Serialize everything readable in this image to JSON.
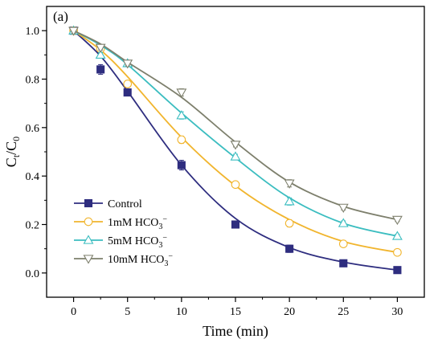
{
  "chart_data": {
    "type": "line",
    "panel_label": "(a)",
    "xlabel": "Time (min)",
    "ylabel": {
      "main": "C",
      "sub1": "t",
      "slash": "/C",
      "sub2": "0"
    },
    "xlim": [
      -2.5,
      32.5
    ],
    "ylim": [
      -0.1,
      1.1
    ],
    "xticks": [
      0,
      5,
      10,
      15,
      20,
      25,
      30
    ],
    "yticks": [
      0.0,
      0.2,
      0.4,
      0.6,
      0.8,
      1.0
    ],
    "x": [
      0,
      2.5,
      5,
      10,
      15,
      20,
      25,
      30
    ],
    "legend_position": "lower-left",
    "series": [
      {
        "name": "Control",
        "color": "#2e2d7f",
        "marker": "square-filled",
        "values": [
          1.0,
          0.84,
          0.745,
          0.445,
          0.2,
          0.1,
          0.04,
          0.012
        ],
        "errors": [
          0.01,
          0.02,
          0.01,
          0.02,
          0.01,
          0.015,
          0.005,
          0.005
        ],
        "fit": [
          1.0,
          0.895,
          0.75,
          0.445,
          0.225,
          0.105,
          0.045,
          0.012
        ]
      },
      {
        "name": "1mM HCO",
        "name_sub": "3",
        "name_sup": "−",
        "color": "#f1b52e",
        "marker": "circle-open",
        "values": [
          1.0,
          0.925,
          0.78,
          0.55,
          0.365,
          0.205,
          0.12,
          0.085
        ],
        "errors": [
          0.01,
          0.01,
          0.01,
          0.015,
          0.01,
          0.015,
          0.01,
          0.01
        ],
        "fit": [
          1.0,
          0.92,
          0.81,
          0.56,
          0.36,
          0.22,
          0.13,
          0.085
        ]
      },
      {
        "name": "5mM HCO",
        "name_sub": "3",
        "name_sup": "−",
        "color": "#3bbdc0",
        "marker": "triangle-up-open",
        "values": [
          1.0,
          0.9,
          0.865,
          0.65,
          0.48,
          0.295,
          0.205,
          0.152
        ],
        "errors": [
          0.01,
          0.01,
          0.01,
          0.015,
          0.01,
          0.015,
          0.01,
          0.008
        ],
        "fit": [
          1.0,
          0.94,
          0.86,
          0.66,
          0.475,
          0.31,
          0.205,
          0.152
        ]
      },
      {
        "name": "10mM HCO",
        "name_sub": "3",
        "name_sup": "−",
        "color": "#7d7f6c",
        "marker": "triangle-down-open",
        "values": [
          1.0,
          0.93,
          0.865,
          0.745,
          0.53,
          0.37,
          0.27,
          0.22
        ],
        "errors": [
          0.01,
          0.01,
          0.01,
          0.015,
          0.01,
          0.015,
          0.01,
          0.008
        ],
        "fit": [
          1.0,
          0.945,
          0.87,
          0.725,
          0.54,
          0.375,
          0.275,
          0.22
        ]
      }
    ]
  }
}
